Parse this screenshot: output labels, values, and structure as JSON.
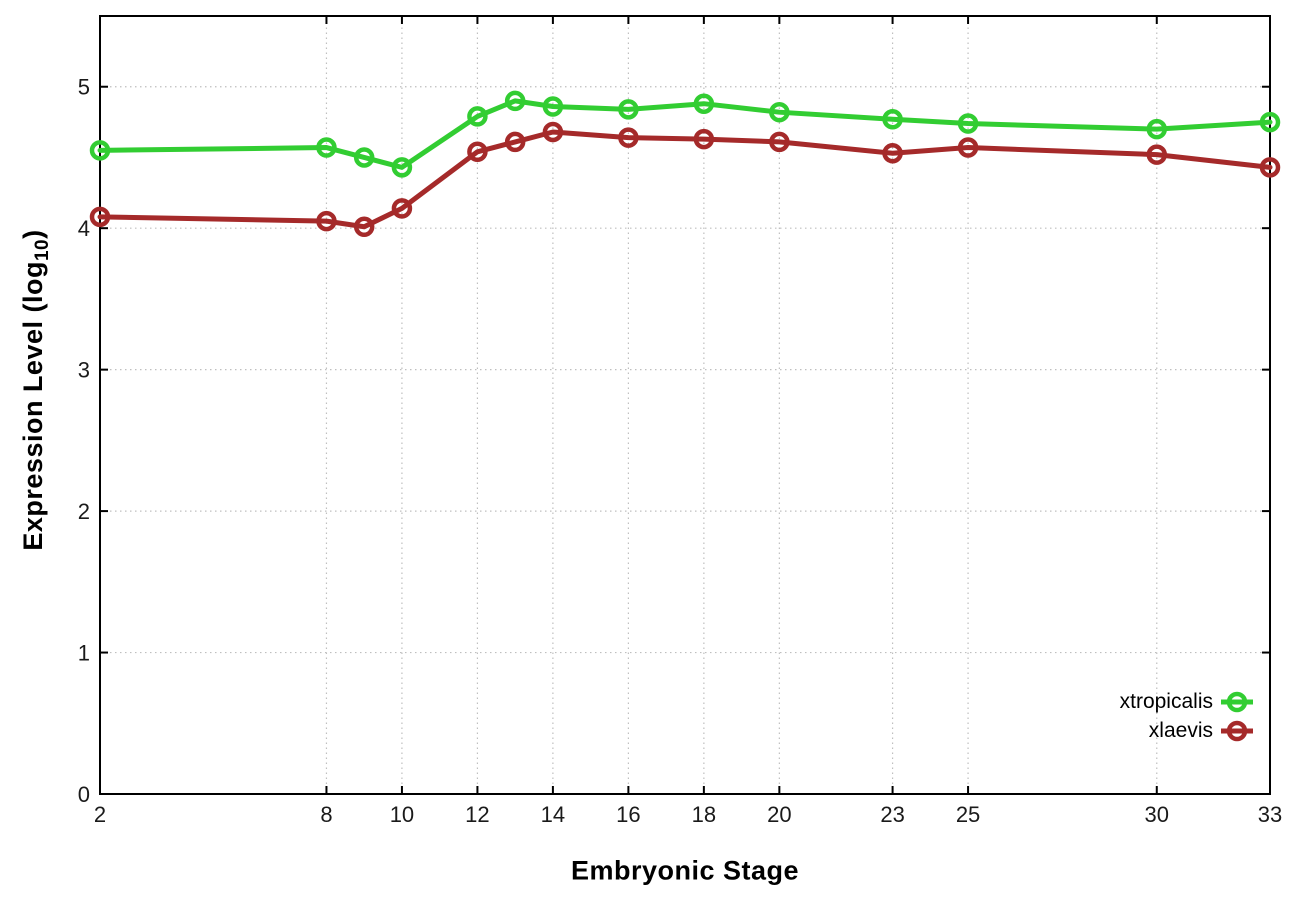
{
  "figure": {
    "background": "#ffffff",
    "border_color": "#000000",
    "grid_color": "#bfbfbf",
    "tick_label_color": "#1a1a1a"
  },
  "chart_data": {
    "type": "line",
    "title": "",
    "xlabel": "Embryonic Stage",
    "ylabel": {
      "pre": "Expression Level (log",
      "sub": "10",
      "post": ")"
    },
    "x": [
      2,
      8,
      9,
      10,
      12,
      13,
      14,
      16,
      18,
      20,
      23,
      25,
      30,
      33
    ],
    "series": [
      {
        "name": "xtropicalis",
        "color": "#32cd32",
        "values": [
          4.55,
          4.57,
          4.5,
          4.43,
          4.79,
          4.9,
          4.86,
          4.84,
          4.88,
          4.82,
          4.77,
          4.74,
          4.7,
          4.75
        ]
      },
      {
        "name": "xlaevis",
        "color": "#a52a2a",
        "values": [
          4.08,
          4.05,
          4.01,
          4.14,
          4.54,
          4.61,
          4.68,
          4.64,
          4.63,
          4.61,
          4.53,
          4.57,
          4.52,
          4.43
        ]
      }
    ],
    "xlim": [
      2,
      33
    ],
    "ylim": [
      0,
      5.5
    ],
    "x_ticks": {
      "values": [
        2,
        8,
        10,
        12,
        14,
        16,
        18,
        20,
        23,
        25,
        30,
        33
      ],
      "labels": [
        "2",
        "8",
        "10",
        "12",
        "14",
        "16",
        "18",
        "20",
        "23",
        "25",
        "30",
        "33"
      ]
    },
    "y_ticks": {
      "values": [
        0,
        1,
        2,
        3,
        4,
        5
      ],
      "labels": [
        "0",
        "1",
        "2",
        "3",
        "4",
        "5"
      ]
    },
    "grid": true,
    "legend_position": "inside-right",
    "marker": "open-circle"
  }
}
